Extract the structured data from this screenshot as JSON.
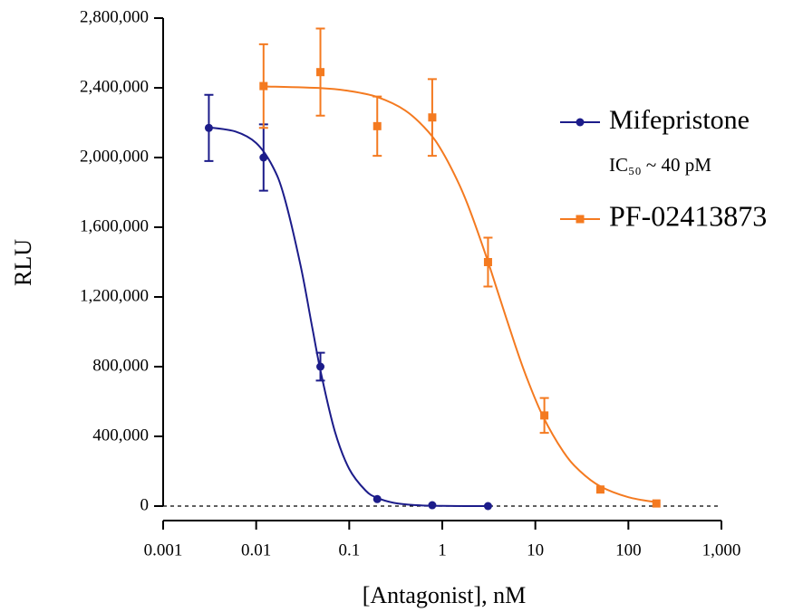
{
  "chart_data": {
    "type": "scatter",
    "x_label": "[Antagonist], nM",
    "y_label": "RLU",
    "x_log": true,
    "xlim": [
      0.001,
      1000
    ],
    "xticks": [
      0.001,
      0.01,
      0.1,
      1,
      10,
      100,
      {
        "value": 1000,
        "label": "1,000"
      }
    ],
    "ylim": [
      0,
      2800000
    ],
    "yticks": [
      0,
      {
        "value": 400000,
        "label": "400,000"
      },
      {
        "value": 800000,
        "label": "800,000"
      },
      {
        "value": 1200000,
        "label": "1,200,000"
      },
      {
        "value": 1600000,
        "label": "1,600,000"
      },
      {
        "value": 2000000,
        "label": "2,000,000"
      },
      {
        "value": 2400000,
        "label": "2,400,000"
      },
      {
        "value": 2800000,
        "label": "2,800,000"
      }
    ],
    "annotation": "IC₅₀ ~ 40 pM",
    "series": [
      {
        "name": "Mifepristone",
        "color": "#1c1c8a",
        "marker": "circle",
        "x": [
          0.0031,
          0.012,
          0.049,
          0.2,
          0.78,
          3.1
        ],
        "values": [
          2170000,
          2000000,
          800000,
          40000,
          5000,
          0
        ],
        "errors": [
          190000,
          190000,
          80000,
          0,
          0,
          0
        ],
        "fit_x": [
          0.003,
          0.006,
          0.01,
          0.015,
          0.02,
          0.03,
          0.04,
          0.05,
          0.07,
          0.1,
          0.15,
          0.2,
          0.3,
          0.5,
          1,
          3.1
        ],
        "fit_values": [
          2174000,
          2149000,
          2083000,
          1950000,
          1775000,
          1380000,
          1026000,
          757000,
          429000,
          213000,
          89000,
          47000,
          19000,
          6000,
          1000,
          0
        ]
      },
      {
        "name": "PF-02413873",
        "color": "#f47a20",
        "marker": "square",
        "x": [
          0.012,
          0.049,
          0.2,
          0.78,
          3.1,
          12.5,
          50,
          200
        ],
        "values": [
          2410000,
          2490000,
          2180000,
          2230000,
          1400000,
          520000,
          95000,
          15000
        ],
        "errors": [
          240000,
          250000,
          170000,
          220000,
          140000,
          100000,
          0,
          0
        ],
        "fit_x": [
          0.012,
          0.05,
          0.1,
          0.2,
          0.4,
          0.7,
          1,
          1.5,
          2,
          3,
          4,
          6,
          8,
          12,
          20,
          30,
          50,
          100,
          200
        ],
        "fit_values": [
          2408000,
          2398000,
          2382000,
          2347000,
          2270000,
          2151000,
          2034000,
          1852000,
          1691000,
          1425000,
          1220000,
          932000,
          743000,
          518000,
          312000,
          202000,
          113000,
          51000,
          22000
        ]
      }
    ]
  }
}
